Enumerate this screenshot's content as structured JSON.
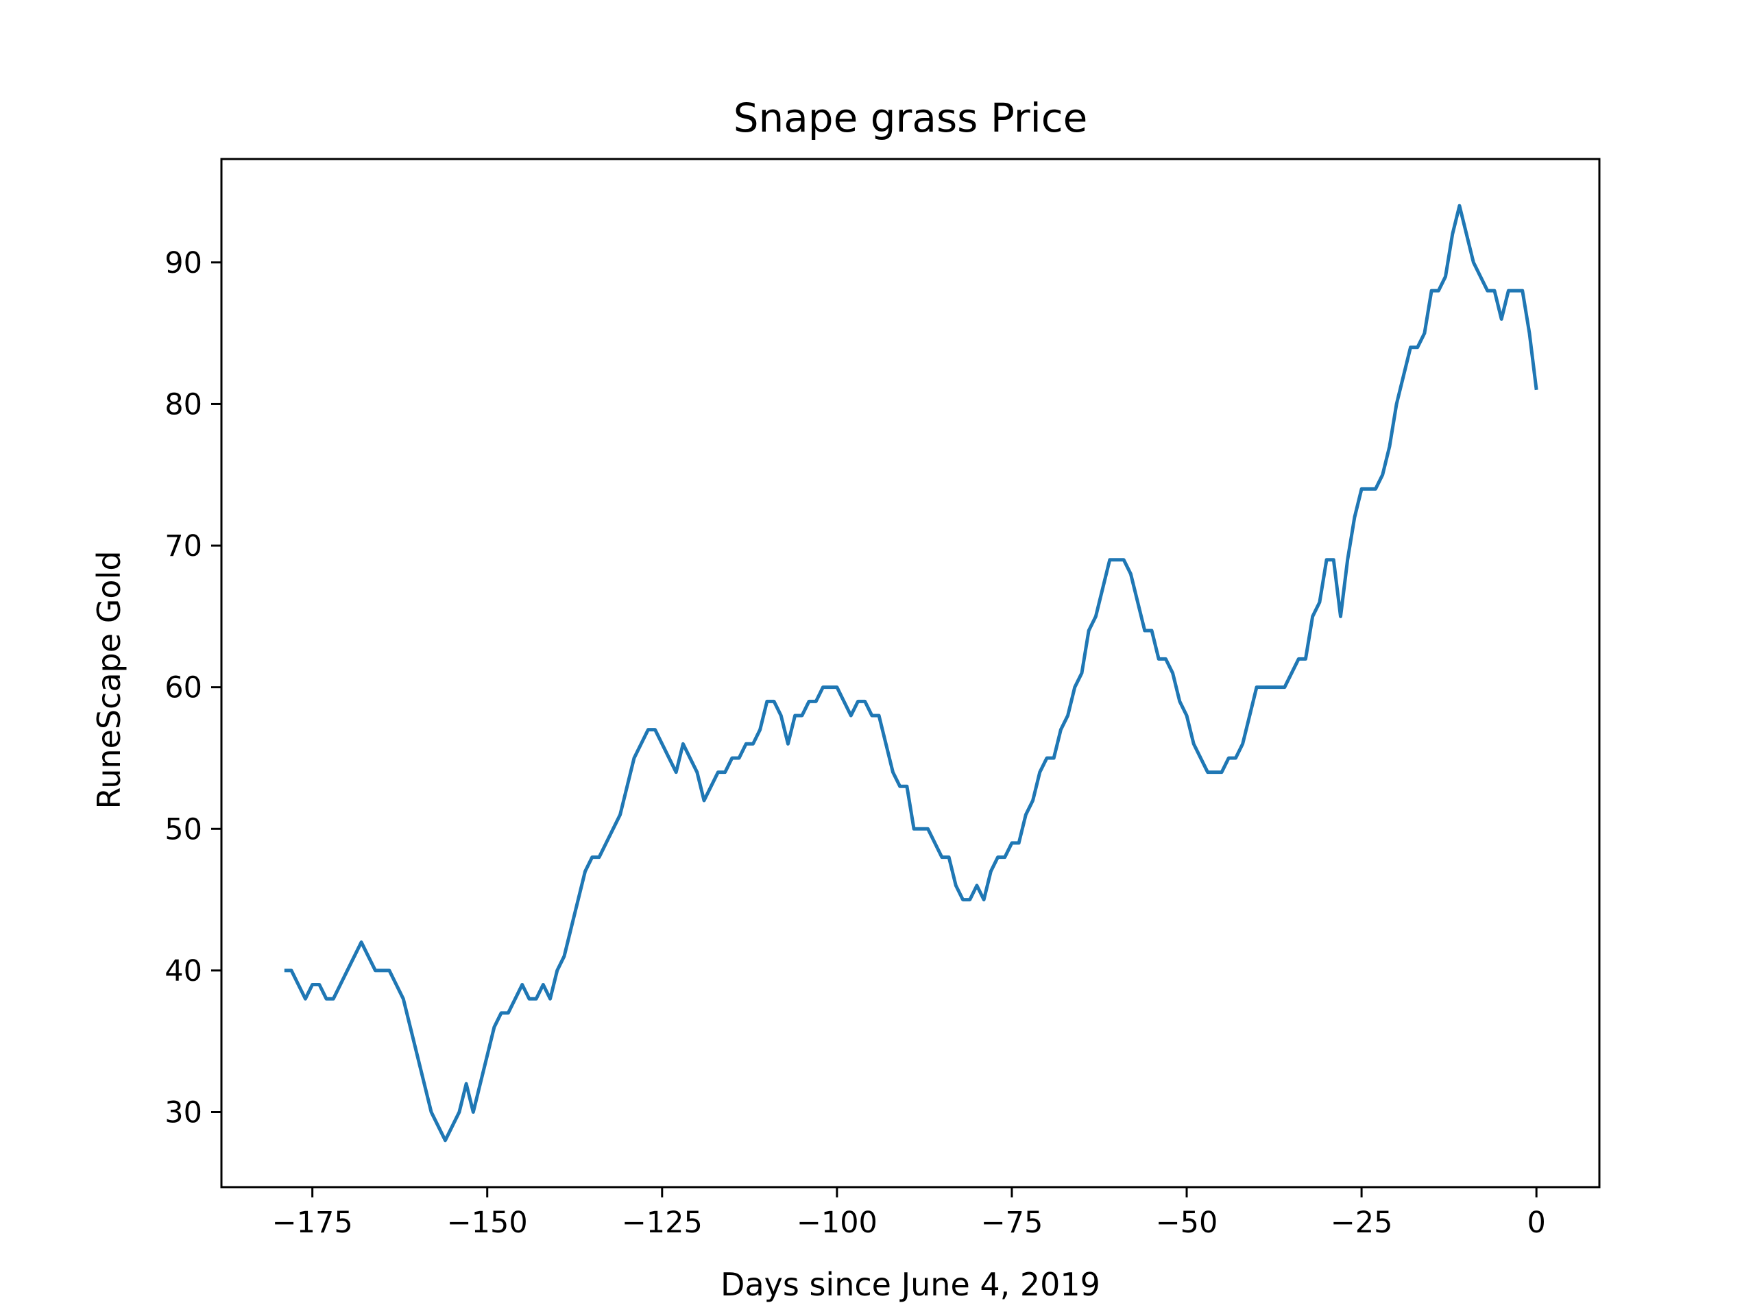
{
  "chart_data": {
    "type": "line",
    "title": "Snape grass Price",
    "xlabel": "Days since June 4, 2019",
    "ylabel": "RuneScape Gold",
    "xlim": [
      -188,
      9
    ],
    "ylim": [
      24.7,
      97.3
    ],
    "xticks": [
      -175,
      -150,
      -125,
      -100,
      -75,
      -50,
      -25,
      0
    ],
    "yticks": [
      30,
      40,
      50,
      60,
      70,
      80,
      90
    ],
    "grid": false,
    "legend": "none",
    "line_color": "#1f77b4",
    "series": [
      {
        "x": [
          -179,
          -178,
          -177,
          -176,
          -175,
          -174,
          -173,
          -172,
          -171,
          -170,
          -169,
          -168,
          -167,
          -166,
          -165,
          -164,
          -163,
          -162,
          -161,
          -160,
          -159,
          -158,
          -157,
          -156,
          -155,
          -154,
          -153,
          -152,
          -151,
          -150,
          -149,
          -148,
          -147,
          -146,
          -145,
          -144,
          -143,
          -142,
          -141,
          -140,
          -139,
          -138,
          -137,
          -136,
          -135,
          -134,
          -133,
          -132,
          -131,
          -130,
          -129,
          -128,
          -127,
          -126,
          -125,
          -124,
          -123,
          -122,
          -121,
          -120,
          -119,
          -118,
          -117,
          -116,
          -115,
          -114,
          -113,
          -112,
          -111,
          -110,
          -109,
          -108,
          -107,
          -106,
          -105,
          -104,
          -103,
          -102,
          -101,
          -100,
          -99,
          -98,
          -97,
          -96,
          -95,
          -94,
          -93,
          -92,
          -91,
          -90,
          -89,
          -88,
          -87,
          -86,
          -85,
          -84,
          -83,
          -82,
          -81,
          -80,
          -79,
          -78,
          -77,
          -76,
          -75,
          -74,
          -73,
          -72,
          -71,
          -70,
          -69,
          -68,
          -67,
          -66,
          -65,
          -64,
          -63,
          -62,
          -61,
          -60,
          -59,
          -58,
          -57,
          -56,
          -55,
          -54,
          -53,
          -52,
          -51,
          -50,
          -49,
          -48,
          -47,
          -46,
          -45,
          -44,
          -43,
          -42,
          -41,
          -40,
          -39,
          -38,
          -37,
          -36,
          -35,
          -34,
          -33,
          -32,
          -31,
          -30,
          -29,
          -28,
          -27,
          -26,
          -25,
          -24,
          -23,
          -22,
          -21,
          -20,
          -19,
          -18,
          -17,
          -16,
          -15,
          -14,
          -13,
          -12,
          -11,
          -10,
          -9,
          -8,
          -7,
          -6,
          -5,
          -4,
          -3,
          -2,
          -1,
          0
        ],
        "y": [
          40,
          40,
          39,
          38,
          39,
          39,
          38,
          38,
          39,
          40,
          41,
          42,
          41,
          40,
          40,
          40,
          39,
          38,
          36,
          34,
          32,
          30,
          29,
          28,
          29,
          30,
          32,
          30,
          32,
          34,
          36,
          37,
          37,
          38,
          39,
          38,
          38,
          39,
          38,
          40,
          41,
          43,
          45,
          47,
          48,
          48,
          49,
          50,
          51,
          53,
          55,
          56,
          57,
          57,
          56,
          55,
          54,
          56,
          55,
          54,
          52,
          53,
          54,
          54,
          55,
          55,
          56,
          56,
          57,
          59,
          59,
          58,
          56,
          58,
          58,
          59,
          59,
          60,
          60,
          60,
          59,
          58,
          59,
          59,
          58,
          58,
          56,
          54,
          53,
          53,
          50,
          50,
          50,
          49,
          48,
          48,
          46,
          45,
          45,
          46,
          45,
          47,
          48,
          48,
          49,
          49,
          51,
          52,
          54,
          55,
          55,
          57,
          58,
          60,
          61,
          64,
          65,
          67,
          69,
          69,
          69,
          68,
          66,
          64,
          64,
          62,
          62,
          61,
          59,
          58,
          56,
          55,
          54,
          54,
          54,
          55,
          55,
          56,
          58,
          60,
          60,
          60,
          60,
          60,
          61,
          62,
          62,
          65,
          66,
          69,
          69,
          65,
          69,
          72,
          74,
          74,
          74,
          75,
          77,
          80,
          82,
          84,
          84,
          85,
          88,
          88,
          89,
          92,
          94,
          92,
          90,
          89,
          88,
          88,
          86,
          88,
          88,
          88,
          85,
          81
        ]
      }
    ]
  }
}
